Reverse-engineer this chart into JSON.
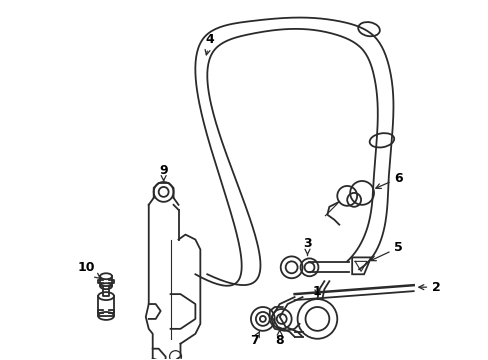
{
  "background": "#ffffff",
  "line_color": "#2a2a2a",
  "label_color": "#000000",
  "figsize": [
    4.89,
    3.6
  ],
  "dpi": 100,
  "lw": 1.3
}
